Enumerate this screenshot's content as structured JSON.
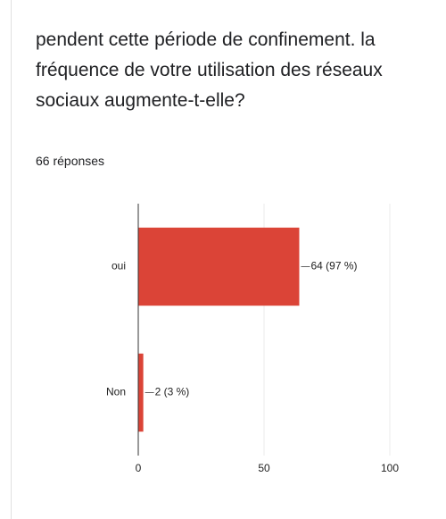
{
  "title": "pendent cette période de confinement. la fréquence de votre utilisation des réseaux sociaux augmente-t-elle?",
  "subtitle": "66 réponses",
  "chart_data": {
    "type": "bar",
    "orientation": "horizontal",
    "categories": [
      "oui",
      "Non"
    ],
    "values": [
      64,
      2
    ],
    "value_labels": [
      "64 (97 %)",
      "2 (3 %)"
    ],
    "color": "#db4437",
    "xlim": [
      0,
      100
    ],
    "xticks": [
      0,
      50,
      100
    ],
    "grid": true
  }
}
